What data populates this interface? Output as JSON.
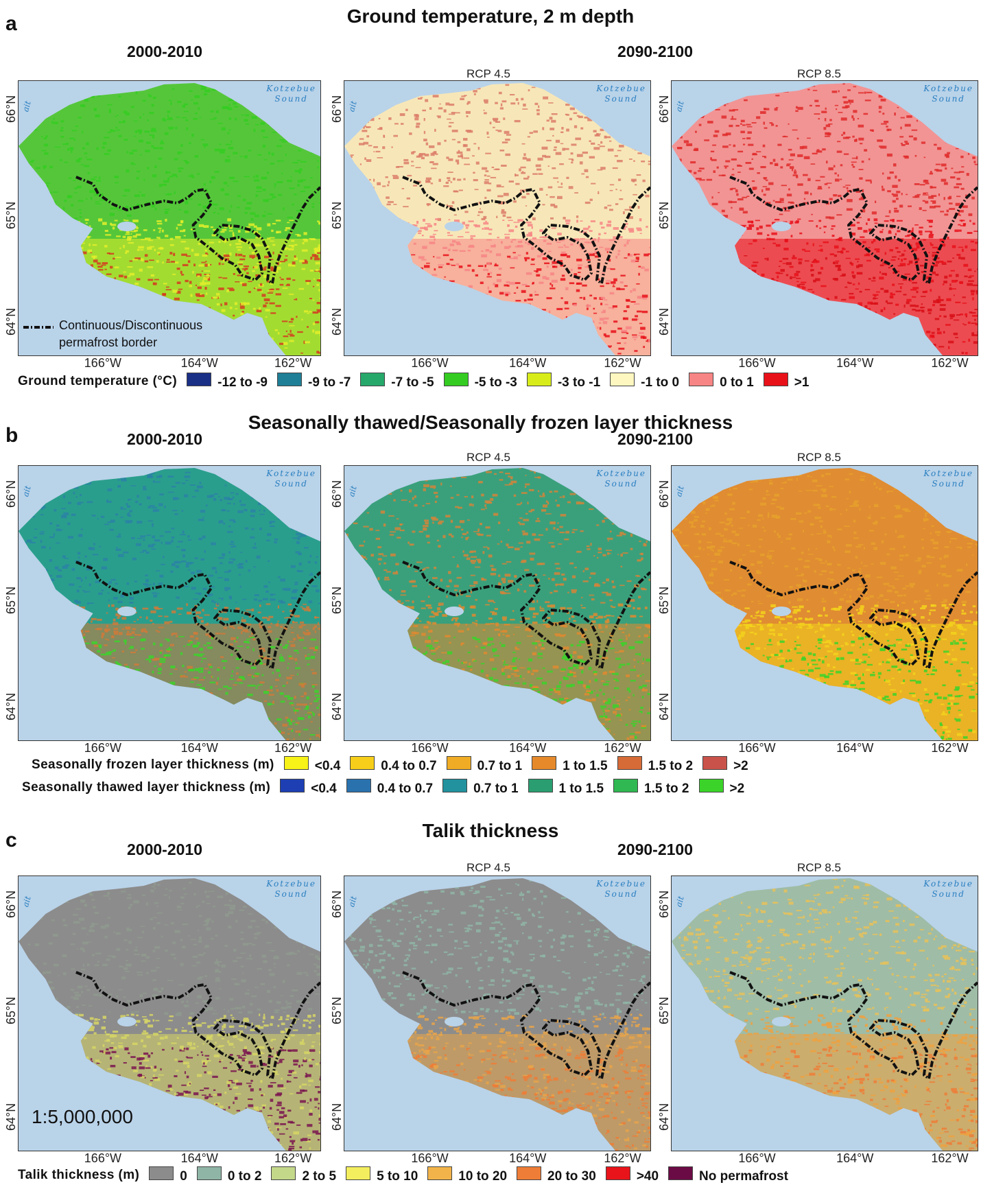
{
  "sections": {
    "a": {
      "letter": "a",
      "title": "Ground temperature, 2 m depth"
    },
    "b": {
      "letter": "b",
      "title": "Seasonally thawed/Seasonally frozen layer thickness"
    },
    "c": {
      "letter": "c",
      "title": "Talik thickness"
    }
  },
  "periods": {
    "baseline": "2000-2010",
    "future": "2090-2100"
  },
  "scenarios": {
    "rcp45": "RCP 4.5",
    "rcp85": "RCP 8.5"
  },
  "map_labels": {
    "sea_line1": "Kotzebue",
    "sea_line2": "Sound",
    "strait_fragment": "ait",
    "lat_66": "66°N",
    "lat_65": "65°N",
    "lat_64": "64°N",
    "lon_166": "166°W",
    "lon_164": "164°W",
    "lon_162": "162°W"
  },
  "border_legend": {
    "line1": "Continuous/Discontinuous",
    "line2": "permafrost border"
  },
  "scale_text": "1:5,000,000",
  "legends": {
    "ground_temperature": {
      "title": "Ground temperature (°C)",
      "items": [
        {
          "label": "-12 to -9",
          "color": "#1a2f86"
        },
        {
          "label": "-9 to -7",
          "color": "#1f7f96"
        },
        {
          "label": "-7 to -5",
          "color": "#27a86b"
        },
        {
          "label": "-5 to -3",
          "color": "#35cc22"
        },
        {
          "label": "-3 to -1",
          "color": "#d8ec1a"
        },
        {
          "label": "-1 to 0",
          "color": "#fff7c0"
        },
        {
          "label": "0 to 1",
          "color": "#f78585"
        },
        {
          "label": ">1",
          "color": "#e8111a"
        }
      ]
    },
    "frozen_layer": {
      "title": "Seasonally frozen layer thickness (m)",
      "items": [
        {
          "label": "<0.4",
          "color": "#f7f217"
        },
        {
          "label": "0.4 to 0.7",
          "color": "#f7cf1a"
        },
        {
          "label": "0.7 to 1",
          "color": "#f0ac24"
        },
        {
          "label": "1 to 1.5",
          "color": "#e5892b"
        },
        {
          "label": "1.5 to 2",
          "color": "#d76b37"
        },
        {
          "label": ">2",
          "color": "#c9534a"
        }
      ]
    },
    "thawed_layer": {
      "title": "Seasonally thawed layer thickness (m)",
      "items": [
        {
          "label": "<0.4",
          "color": "#1d3fb3"
        },
        {
          "label": "0.4 to 0.7",
          "color": "#2a72ae"
        },
        {
          "label": "0.7 to 1",
          "color": "#22929e"
        },
        {
          "label": "1 to 1.5",
          "color": "#2a9e70"
        },
        {
          "label": "1.5 to 2",
          "color": "#30b852"
        },
        {
          "label": ">2",
          "color": "#3bd32a"
        }
      ]
    },
    "talik": {
      "title": "Talik thickness (m)",
      "items": [
        {
          "label": "0",
          "color": "#8c8c8c"
        },
        {
          "label": "0 to 2",
          "color": "#8fb5a6"
        },
        {
          "label": "2 to 5",
          "color": "#c4d88a"
        },
        {
          "label": "5 to 10",
          "color": "#f3ee5e"
        },
        {
          "label": "10 to 20",
          "color": "#f2b44a"
        },
        {
          "label": "20 to 30",
          "color": "#ee7d37"
        },
        {
          "label": ">40",
          "color": "#e8141a"
        },
        {
          "label": "No permafrost",
          "color": "#6b0b45"
        }
      ]
    }
  },
  "map_colors": {
    "a1": {
      "base": "#55c63a",
      "mid": "#35cc22",
      "south": "#e4ef2a",
      "hot": "#d53b20"
    },
    "a2": {
      "base": "#f7e7b8",
      "mid": "#dc7c68",
      "south": "#f78585",
      "hot": "#e8111a"
    },
    "a3": {
      "base": "#f29494",
      "mid": "#e02a2a",
      "south": "#e8111a",
      "hot": "#d80e16"
    },
    "b1": {
      "base": "#2a9e8c",
      "mid": "#2a82a6",
      "south": "#cf7a3a",
      "hot": "#3bd32a"
    },
    "b2": {
      "base": "#3aa07c",
      "mid": "#d5843a",
      "south": "#e08a30",
      "hot": "#3bd32a"
    },
    "b3": {
      "base": "#e08c32",
      "mid": "#e6a02c",
      "south": "#f3d21c",
      "hot": "#3bd32a"
    },
    "c1": {
      "base": "#8c8c8c",
      "mid": "#8f9a8e",
      "south": "#d7d665",
      "hot": "#7a1550"
    },
    "c2": {
      "base": "#8c8c8c",
      "mid": "#8fb5a6",
      "south": "#e8a54a",
      "hot": "#ee7d37"
    },
    "c3": {
      "base": "#9fbca6",
      "mid": "#e6c25a",
      "south": "#efa13f",
      "hot": "#ee7d37"
    }
  }
}
